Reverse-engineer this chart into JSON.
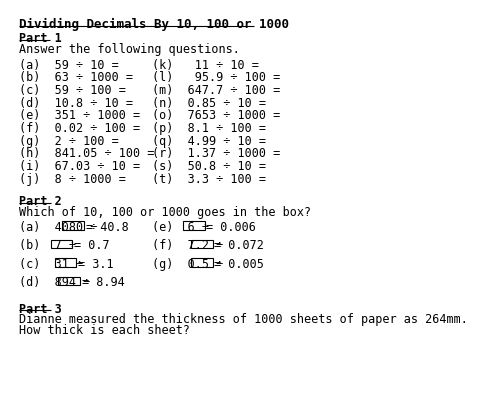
{
  "title": "Dividing Decimals By 10, 100 or 1000",
  "bg_color": "#ffffff",
  "text_color": "#000000",
  "font_size": 8.5,
  "part1_header": "Part 1",
  "part1_intro": "Answer the following questions.",
  "part1_left": [
    "(a)  59 ÷ 10 =",
    "(b)  63 ÷ 1000 =",
    "(c)  59 ÷ 100 =",
    "(d)  10.8 ÷ 10 =",
    "(e)  351 ÷ 1000 =",
    "(f)  0.02 ÷ 100 =",
    "(g)  2 ÷ 100 =",
    "(h)  841.05 ÷ 100 =",
    "(i)  67.03 ÷ 10 =",
    "(j)  8 ÷ 1000 ="
  ],
  "part1_right": [
    "(k)   11 ÷ 10 =",
    "(l)   95.9 ÷ 100 =",
    "(m)  647.7 ÷ 100 =",
    "(n)  0.85 ÷ 10 =",
    "(o)  7653 ÷ 1000 =",
    "(p)  8.1 ÷ 100 =",
    "(q)  4.99 ÷ 10 =",
    "(r)  1.37 ÷ 1000 =",
    "(s)  50.8 ÷ 10 =",
    "(t)  3.3 ÷ 100 ="
  ],
  "part2_header": "Part 2",
  "part2_intro": "Which of 10, 100 or 1000 goes in the box?",
  "part2_left": [
    [
      "(a)  4080 ÷",
      "= 40.8"
    ],
    [
      "(b)  7 ÷",
      "= 0.7"
    ],
    [
      "(c)  31 ÷",
      "= 3.1"
    ],
    [
      "(d)  894 ÷",
      "= 8.94"
    ]
  ],
  "part2_right": [
    [
      "(e)  6 ÷",
      "= 0.006"
    ],
    [
      "(f)  7.2 ÷",
      "= 0.072"
    ],
    [
      "(g)  0.5 ÷",
      "= 0.005"
    ]
  ],
  "part3_header": "Part 3",
  "part3_line1": "Dianne measured the thickness of 1000 sheets of paper as 264mm.",
  "part3_line2": "How thick is each sheet?"
}
